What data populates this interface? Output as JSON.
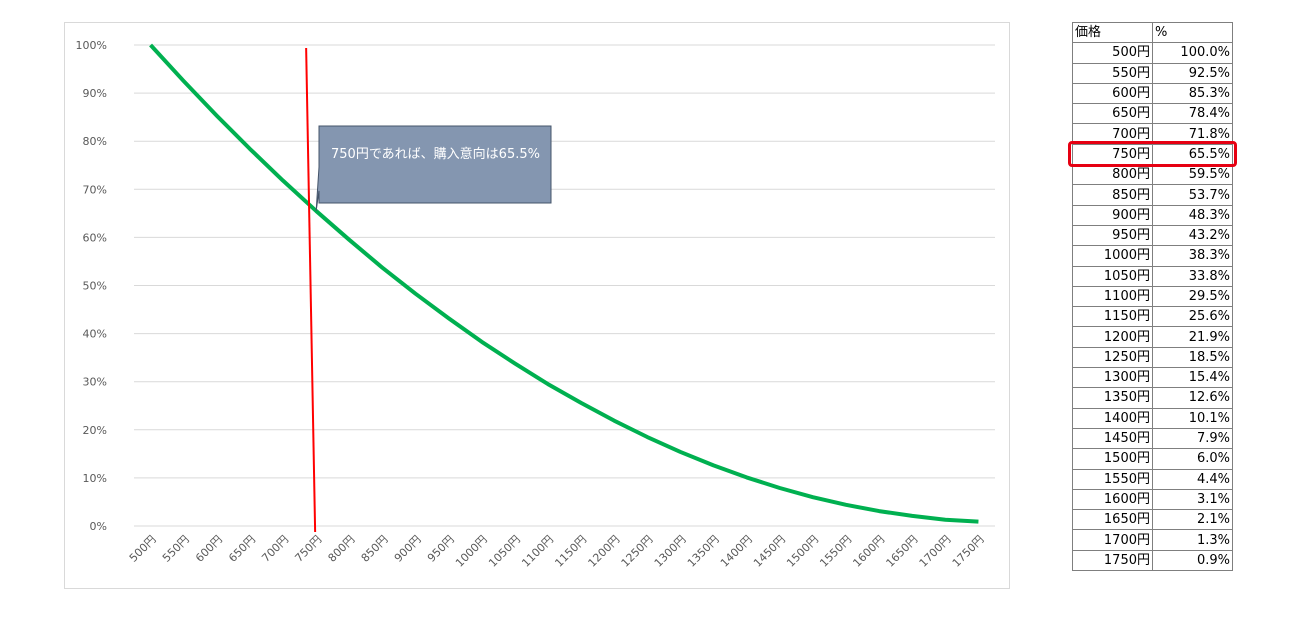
{
  "chart_data": {
    "type": "line",
    "title": "",
    "xlabel": "",
    "ylabel": "",
    "ylim": [
      0,
      1
    ],
    "y_ticks": [
      "0%",
      "10%",
      "20%",
      "30%",
      "40%",
      "50%",
      "60%",
      "70%",
      "80%",
      "90%",
      "100%"
    ],
    "categories": [
      "500円",
      "550円",
      "600円",
      "650円",
      "700円",
      "750円",
      "800円",
      "850円",
      "900円",
      "950円",
      "1000円",
      "1050円",
      "1100円",
      "1150円",
      "1200円",
      "1250円",
      "1300円",
      "1350円",
      "1400円",
      "1450円",
      "1500円",
      "1550円",
      "1600円",
      "1650円",
      "1700円",
      "1750円"
    ],
    "series": [
      {
        "values": [
          1.0,
          0.925,
          0.853,
          0.784,
          0.718,
          0.655,
          0.595,
          0.537,
          0.483,
          0.432,
          0.383,
          0.338,
          0.295,
          0.256,
          0.219,
          0.185,
          0.154,
          0.126,
          0.101,
          0.079,
          0.06,
          0.044,
          0.031,
          0.021,
          0.013,
          0.009
        ],
        "color": "#00b050"
      }
    ],
    "marker_line": {
      "category": "750円",
      "color": "#ff0000"
    },
    "annotation": {
      "text": "750円であれば、購入意向は65.5%",
      "target_category": "750円",
      "target_value": 0.655,
      "fill": "#8496b0"
    },
    "grid": true,
    "legend": "none"
  },
  "table": {
    "headers": [
      "価格",
      "%"
    ],
    "rows": [
      [
        "500円",
        "100.0%"
      ],
      [
        "550円",
        "92.5%"
      ],
      [
        "600円",
        "85.3%"
      ],
      [
        "650円",
        "78.4%"
      ],
      [
        "700円",
        "71.8%"
      ],
      [
        "750円",
        "65.5%"
      ],
      [
        "800円",
        "59.5%"
      ],
      [
        "850円",
        "53.7%"
      ],
      [
        "900円",
        "48.3%"
      ],
      [
        "950円",
        "43.2%"
      ],
      [
        "1000円",
        "38.3%"
      ],
      [
        "1050円",
        "33.8%"
      ],
      [
        "1100円",
        "29.5%"
      ],
      [
        "1150円",
        "25.6%"
      ],
      [
        "1200円",
        "21.9%"
      ],
      [
        "1250円",
        "18.5%"
      ],
      [
        "1300円",
        "15.4%"
      ],
      [
        "1350円",
        "12.6%"
      ],
      [
        "1400円",
        "10.1%"
      ],
      [
        "1450円",
        "7.9%"
      ],
      [
        "1500円",
        "6.0%"
      ],
      [
        "1550円",
        "4.4%"
      ],
      [
        "1600円",
        "3.1%"
      ],
      [
        "1650円",
        "2.1%"
      ],
      [
        "1700円",
        "1.3%"
      ],
      [
        "1750円",
        "0.9%"
      ]
    ],
    "highlight_row": 5,
    "highlight_color": "#e60012"
  }
}
